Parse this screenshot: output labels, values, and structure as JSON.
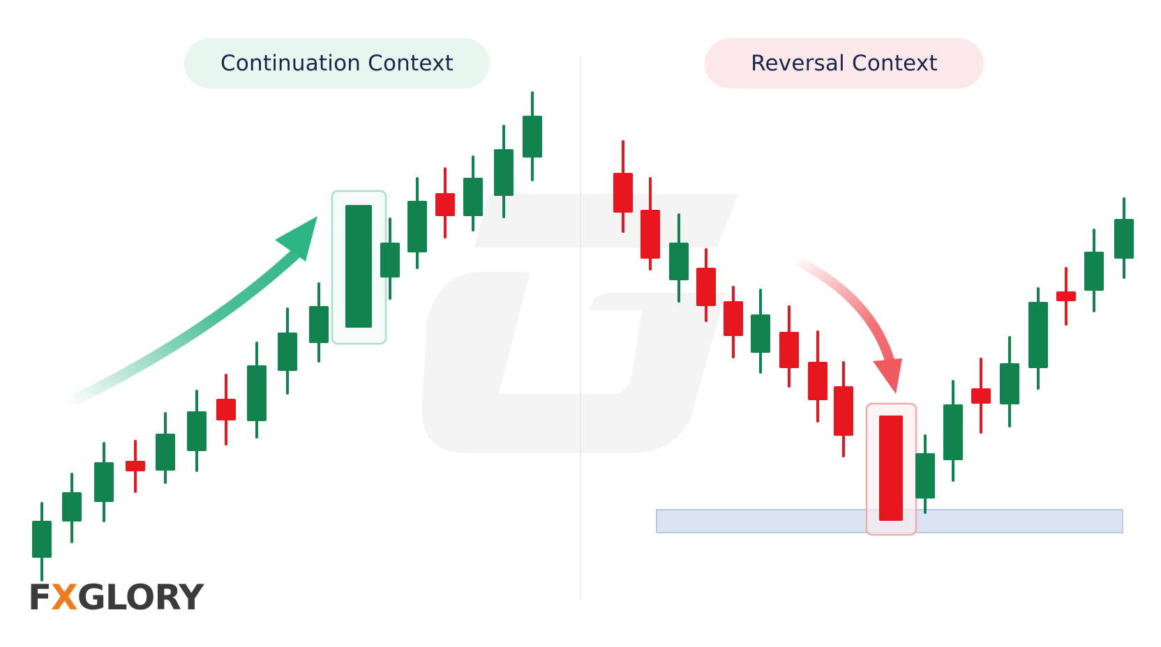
{
  "left_panel": {
    "label": "Continuation Context",
    "label_bg": "#e8f6f0",
    "arrow_color": "#2db584",
    "trend": "uptrend",
    "highlighted_candle": "bullish"
  },
  "right_panel": {
    "label": "Reversal Context",
    "label_bg": "#fde8e9",
    "arrow_color": "#f05a5f",
    "trend": "downtrend then reversal",
    "highlighted_candle": "bearish",
    "support_zone_color": "#d4dff0"
  },
  "colors": {
    "bullish": "#11834f",
    "bearish": "#e8161f",
    "divider": "#e6e6e6",
    "watermark": "#f3f3f3"
  },
  "logo": {
    "text_before": "F",
    "accent_glyph": "X",
    "text_after": "GLORY",
    "accent_color": "#f07b1d"
  }
}
